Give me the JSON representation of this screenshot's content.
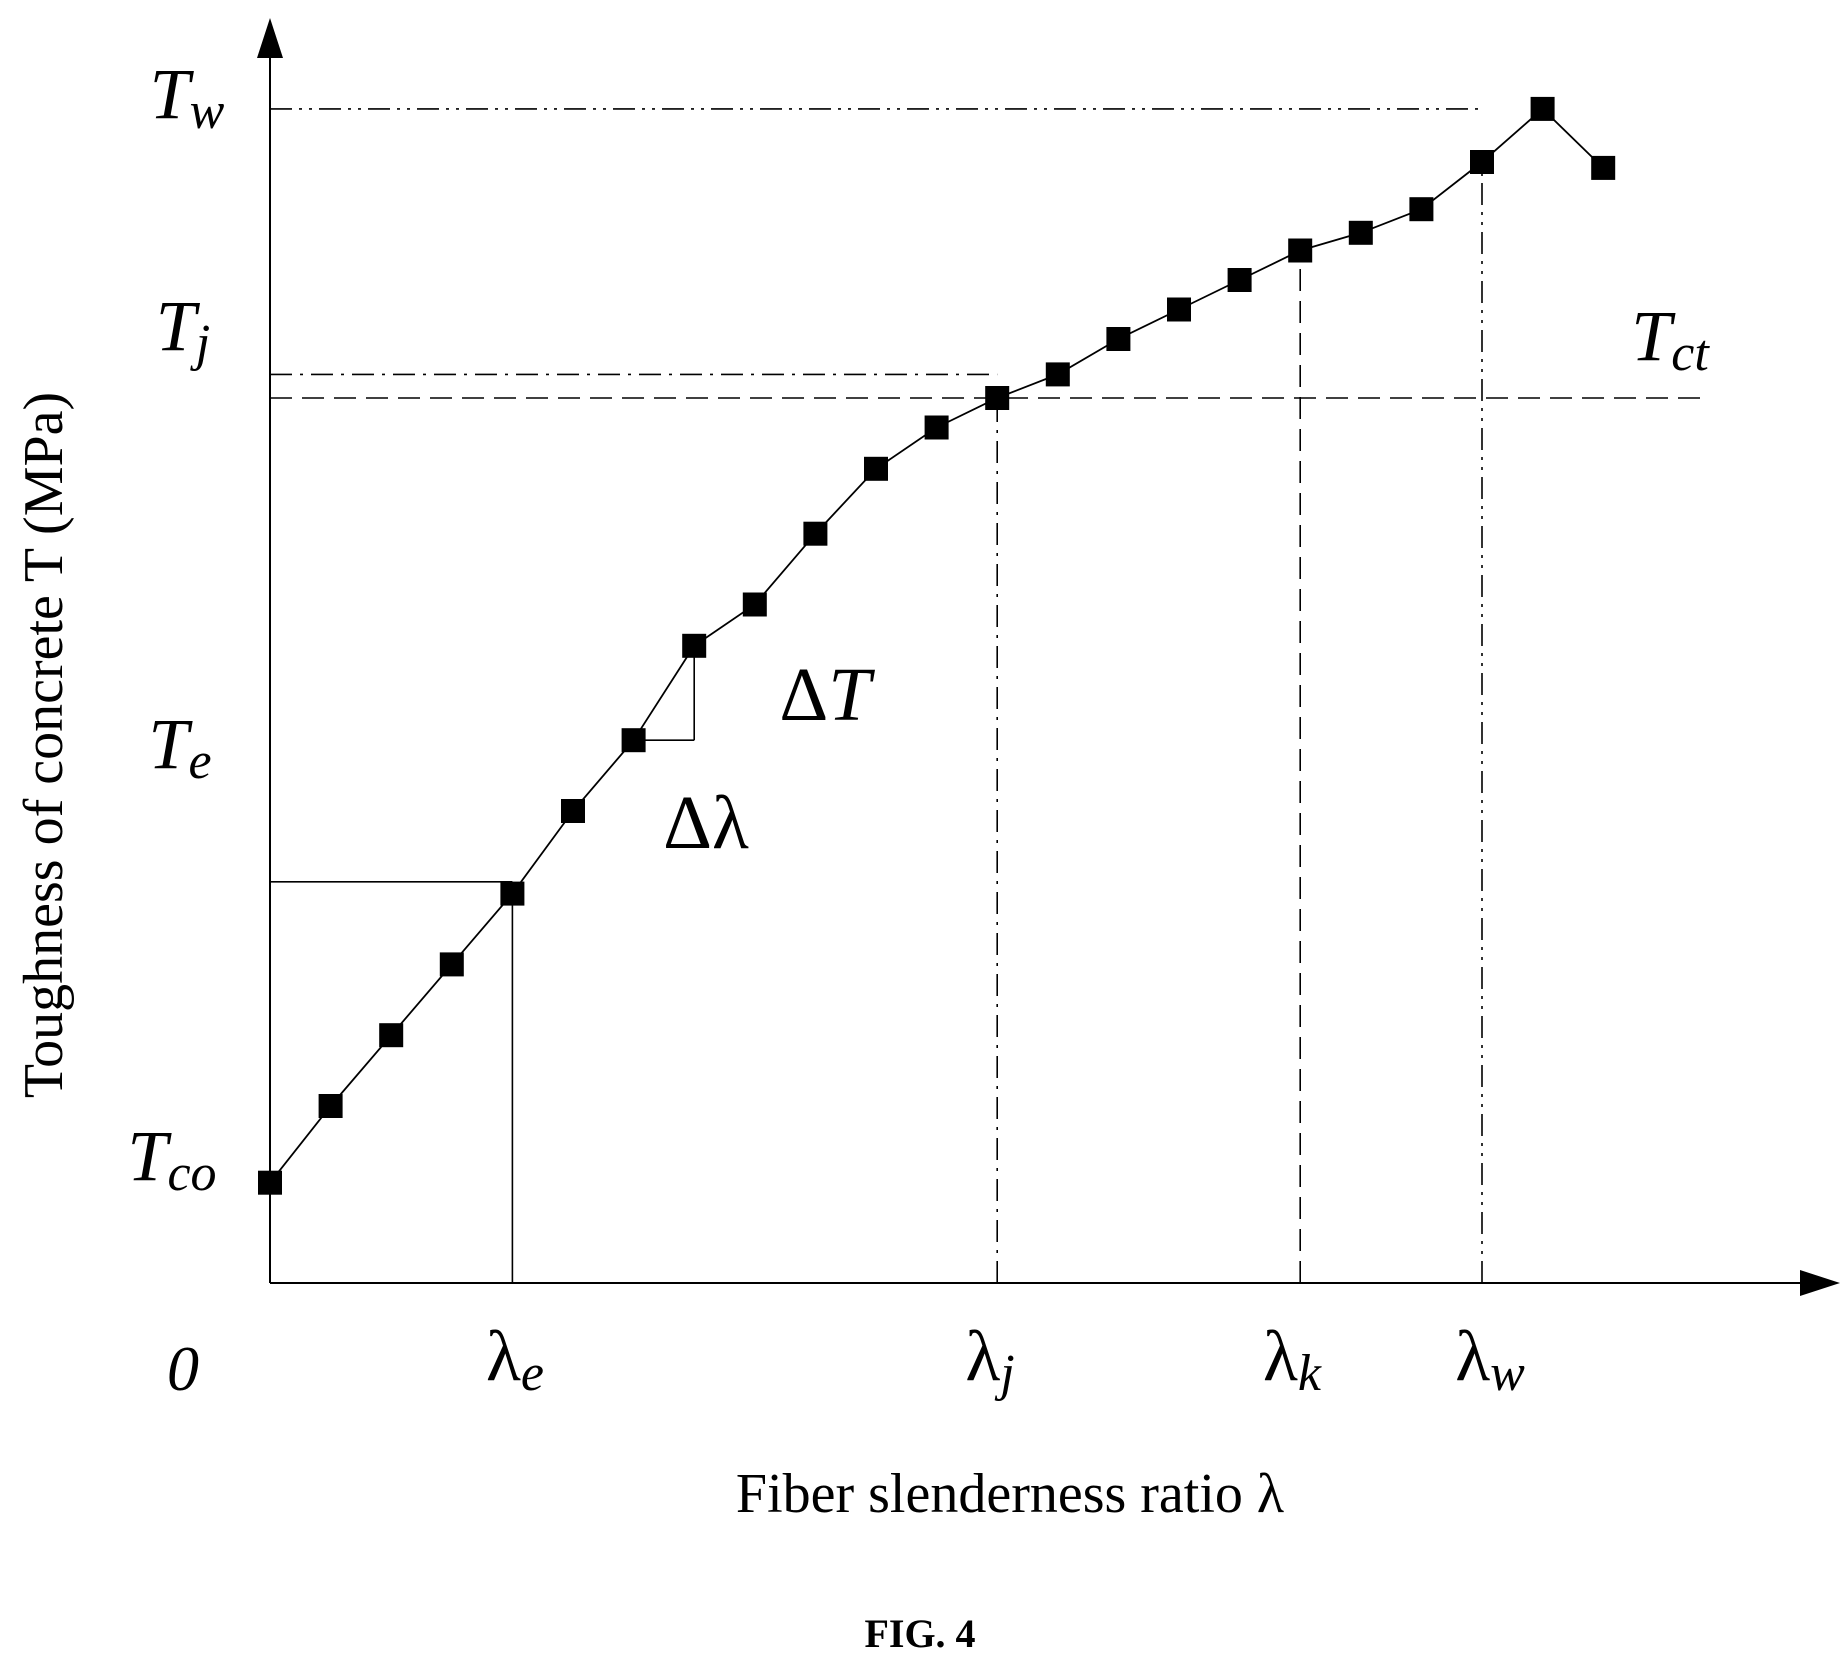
{
  "figure_label": "FIG. 4",
  "chart_data": {
    "type": "line",
    "title": "",
    "xlabel": "Fiber slenderness ratio λ",
    "ylabel": "Toughness of concrete T (MPa)",
    "origin_label": "0",
    "marker": "square",
    "xlim": [
      0,
      25
    ],
    "ylim": [
      0,
      20
    ],
    "series": [
      {
        "x": [
          0,
          1,
          2,
          3,
          4,
          5,
          6,
          7,
          8,
          9,
          10,
          11,
          12,
          13,
          14,
          15,
          16,
          17,
          18,
          19,
          20,
          21,
          22
        ],
        "y": [
          1.7,
          3.0,
          4.2,
          5.4,
          6.6,
          8.0,
          9.2,
          10.8,
          11.5,
          12.7,
          13.8,
          14.5,
          15.0,
          15.4,
          16.0,
          16.5,
          17.0,
          17.5,
          17.8,
          18.2,
          19.0,
          19.9,
          18.9
        ]
      }
    ],
    "y_markers": [
      {
        "name": "T",
        "sub": "w",
        "value": 19.9,
        "style": "dash-dot-dot"
      },
      {
        "name": "T",
        "sub": "j",
        "value": 15.4,
        "style": "dash-dot"
      },
      {
        "name": "T",
        "sub": "e",
        "value": 6.8,
        "style": "solid"
      },
      {
        "name": "T",
        "sub": "co",
        "value": 1.7,
        "style": "none"
      }
    ],
    "x_markers": [
      {
        "name": "λ",
        "sub": "e",
        "value": 4,
        "style": "solid"
      },
      {
        "name": "λ",
        "sub": "j",
        "value": 12,
        "style": "dash-dot"
      },
      {
        "name": "λ",
        "sub": "k",
        "value": 17,
        "style": "dashed"
      },
      {
        "name": "λ",
        "sub": "w",
        "value": 20,
        "style": "dash-dot-dot"
      }
    ],
    "reference_line": {
      "name": "T",
      "sub": "ct",
      "value": 15.0,
      "style": "dashed"
    },
    "annotations": {
      "delta_T": "ΔT",
      "delta_lambda": "Δλ",
      "step_from_x": 6,
      "step_to_x": 7
    }
  }
}
